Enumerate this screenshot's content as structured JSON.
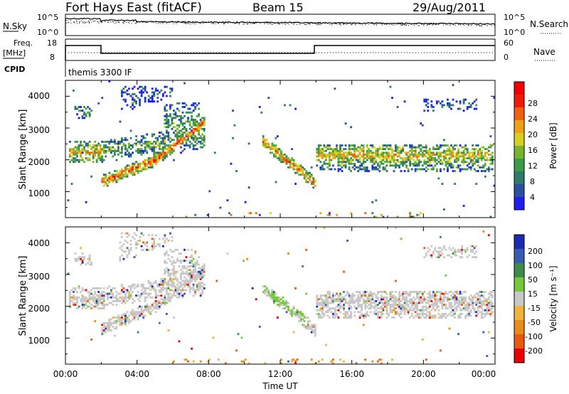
{
  "header": {
    "station": "Fort Hays East (fitACF)",
    "beam": "Beam 15",
    "date": "29/Aug/2011"
  },
  "noise_panel": {
    "left_label": "N.Sky",
    "left_ticks": [
      "10^5",
      "10^0"
    ],
    "right_label": "N.Search",
    "right_ticks": [
      "10^5",
      "10^0"
    ]
  },
  "freq_panel": {
    "left_label_1": "Freq.",
    "left_label_2": "[MHz]",
    "left_ticks": [
      "18",
      "8"
    ],
    "right_label": "Nave",
    "right_ticks": [
      "60",
      "0"
    ]
  },
  "cpid": {
    "label": "CPID",
    "value": "themis 3300 IF"
  },
  "colors": {
    "power_scale": [
      "#1e1ef0",
      "#2a50a0",
      "#2f7a6a",
      "#3c9a4a",
      "#78b42e",
      "#d6d020",
      "#f0a018",
      "#f06010",
      "#f01a0a",
      "#f00000"
    ],
    "velocity_scale": [
      "#1e2ab4",
      "#3a5cb0",
      "#3c8c4c",
      "#78c83c",
      "#c8c8c8",
      "#f0b43c",
      "#e88c1a",
      "#e85a10",
      "#e80000"
    ]
  },
  "chart_data": [
    {
      "type": "heatmap",
      "name": "Power",
      "ylabel": "Slant Range [km]",
      "yticks": [
        "4000",
        "3000",
        "2000",
        "1000"
      ],
      "ylim": [
        180,
        4500
      ],
      "colorbar_label": "Power [dB]",
      "colorbar_ticks": [
        "28",
        "24",
        "20",
        "16",
        "12",
        "8",
        "4"
      ],
      "colorbar_range": [
        0,
        32
      ]
    },
    {
      "type": "heatmap",
      "name": "Velocity",
      "ylabel": "Slant Range [km]",
      "yticks": [
        "4000",
        "3000",
        "2000",
        "1000"
      ],
      "ylim": [
        180,
        4500
      ],
      "colorbar_label": "Velocity [m s⁻¹]",
      "colorbar_ticks": [
        "200",
        "100",
        "50",
        "15",
        "-15",
        "-50",
        "-100",
        "-200"
      ]
    }
  ],
  "x_axis": {
    "xlabel": "Time UT",
    "ticks": [
      "00:00",
      "04:00",
      "08:00",
      "12:00",
      "16:00",
      "20:00",
      "00:00"
    ],
    "xlim_hours": [
      0,
      24
    ]
  }
}
